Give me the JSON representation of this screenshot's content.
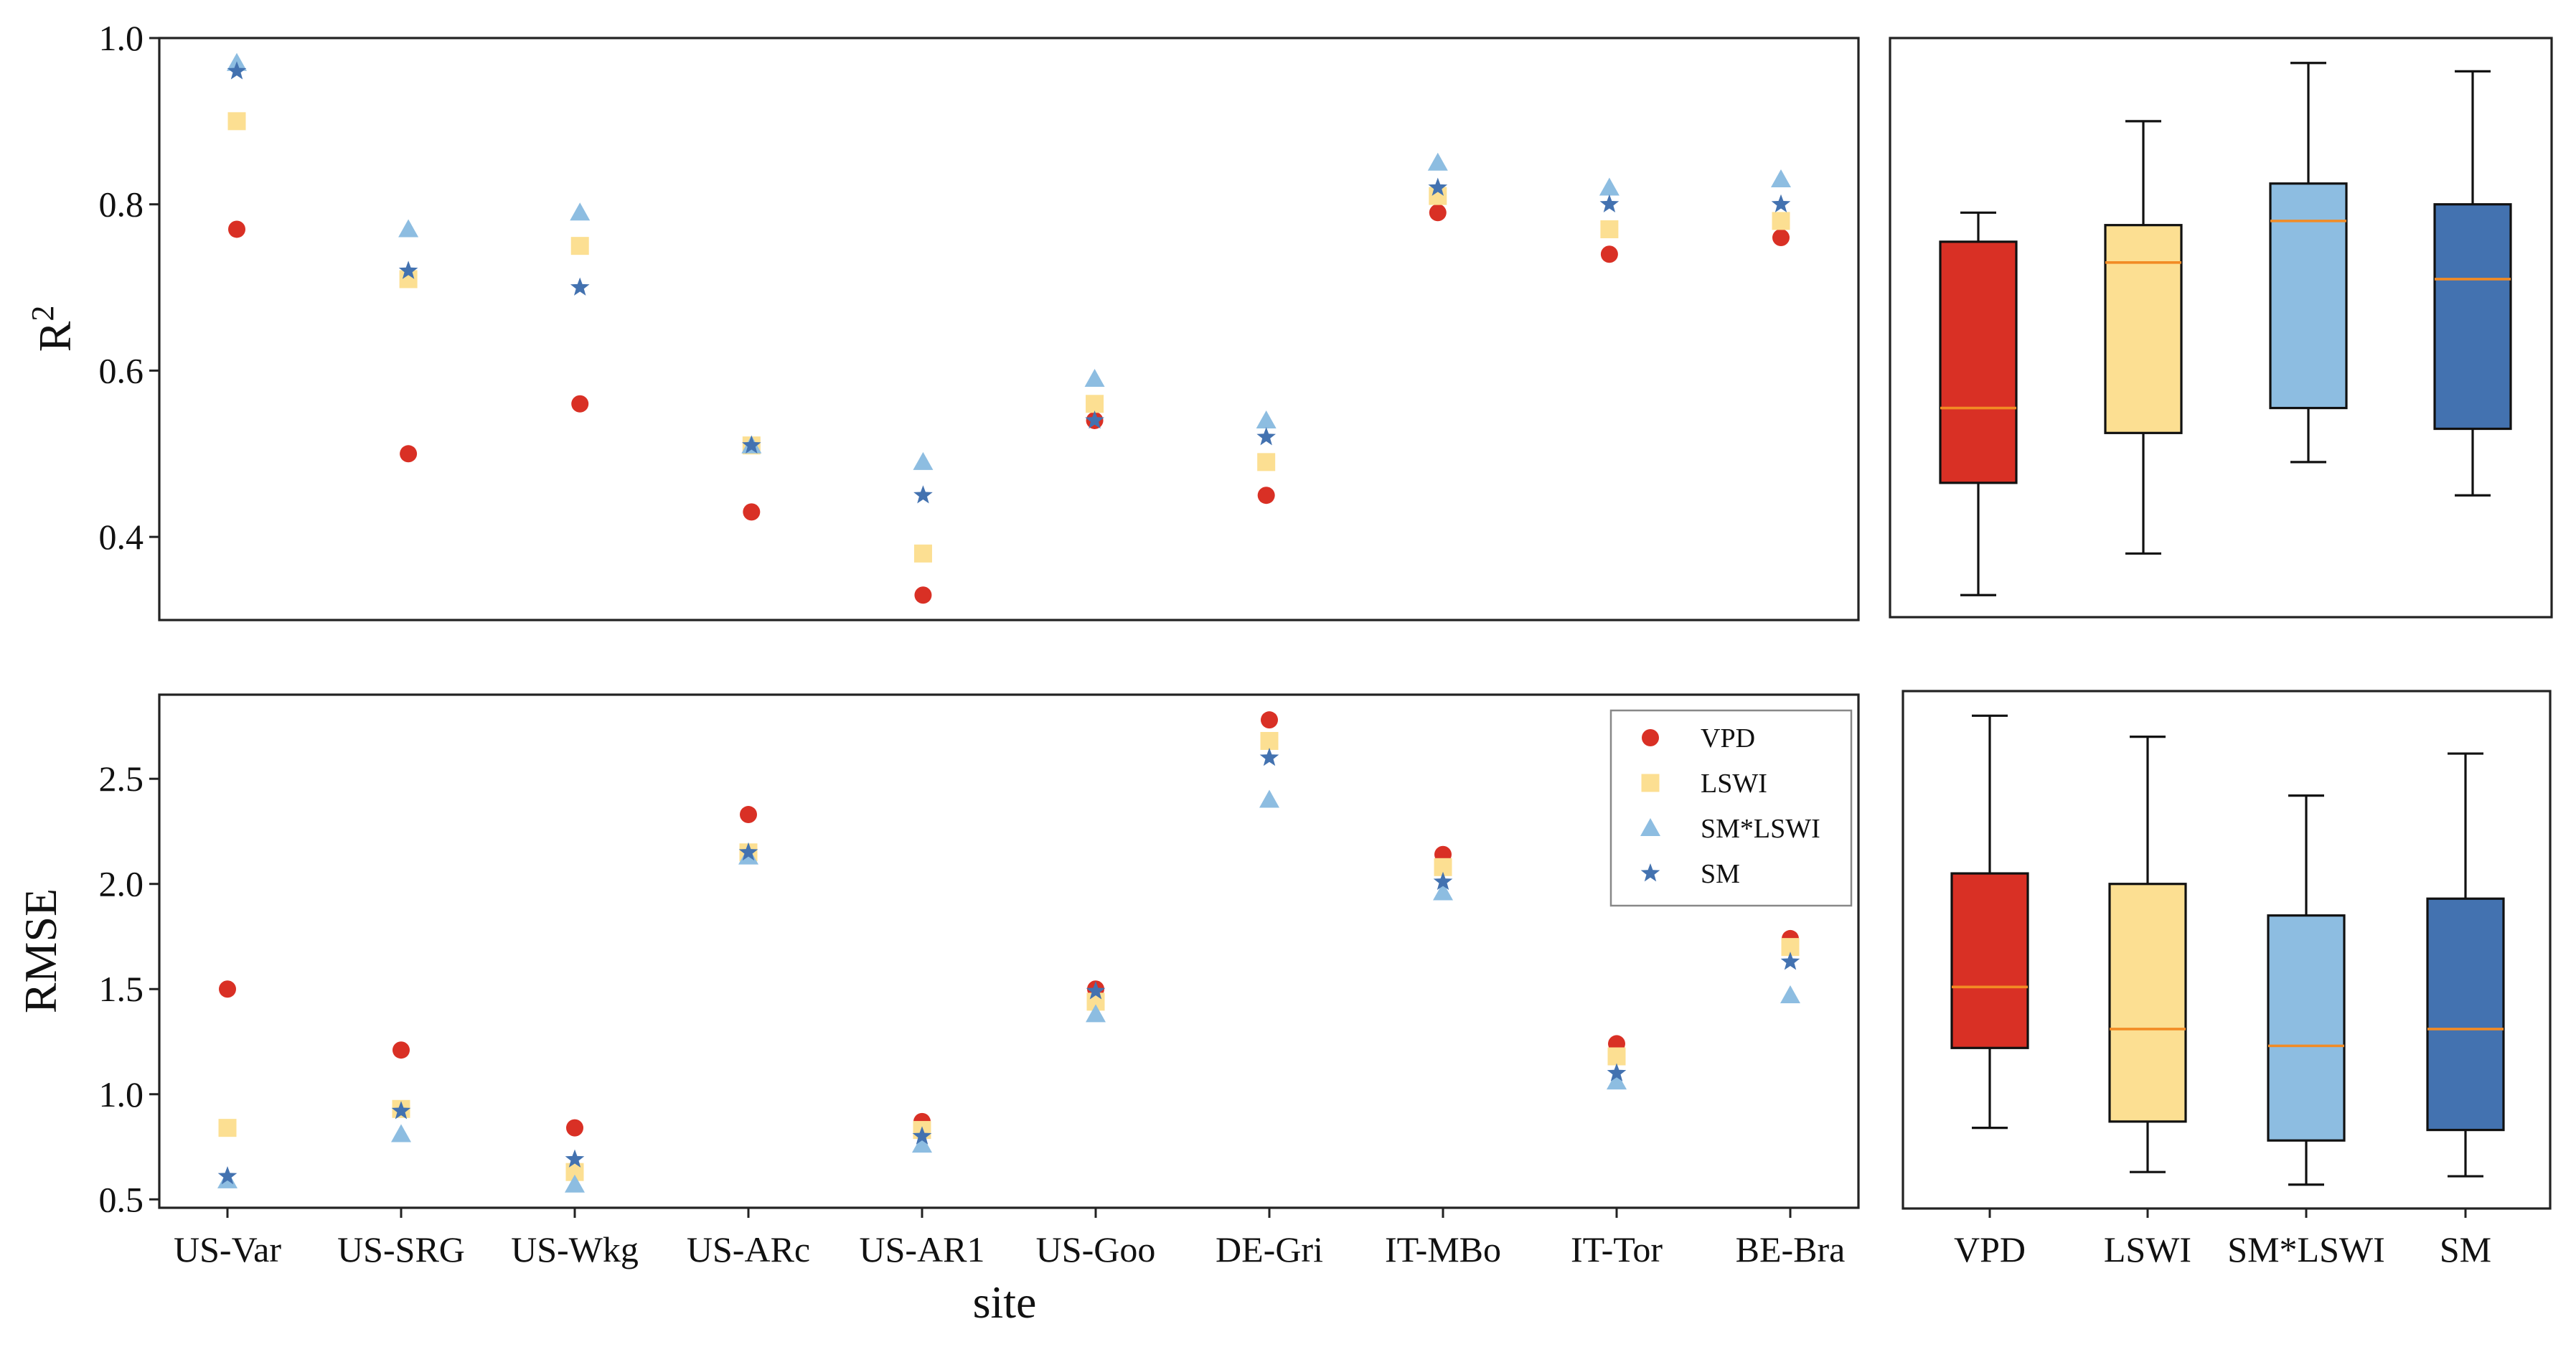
{
  "colors": {
    "VPD": "#d93025",
    "LSWI": "#fcdf92",
    "SM*LSWI": "#8dbde1",
    "SM": "#4372b0",
    "median": "#f28b24",
    "axis": "#222222"
  },
  "chart_data": [
    {
      "id": "r2_scatter",
      "type": "scatter",
      "ylabel": "R",
      "ylabel_superscript": "2",
      "xlabel": "",
      "ylim": [
        0.3,
        1.0
      ],
      "yticks": [
        0.4,
        0.6,
        0.8,
        1.0
      ],
      "ytick_labels": [
        "0.4",
        "0.6",
        "0.8",
        "1.0"
      ],
      "categories": [
        "US-Var",
        "US-SRG",
        "US-Wkg",
        "US-ARc",
        "US-AR1",
        "US-Goo",
        "DE-Gri",
        "IT-MBo",
        "IT-Tor",
        "BE-Bra"
      ],
      "show_xtick_labels": false,
      "series": [
        {
          "name": "VPD",
          "marker": "circle",
          "values": [
            0.77,
            0.5,
            0.56,
            0.43,
            0.33,
            0.54,
            0.45,
            0.79,
            0.74,
            0.76
          ]
        },
        {
          "name": "LSWI",
          "marker": "square",
          "values": [
            0.9,
            0.71,
            0.75,
            0.51,
            0.38,
            0.56,
            0.49,
            0.81,
            0.77,
            0.78
          ]
        },
        {
          "name": "SM*LSWI",
          "marker": "triangle",
          "values": [
            0.97,
            0.77,
            0.79,
            0.51,
            0.49,
            0.59,
            0.54,
            0.85,
            0.82,
            0.83
          ]
        },
        {
          "name": "SM",
          "marker": "star",
          "values": [
            0.96,
            0.72,
            0.7,
            0.51,
            0.45,
            0.54,
            0.52,
            0.82,
            0.8,
            0.8
          ]
        }
      ]
    },
    {
      "id": "r2_box",
      "type": "box",
      "ylim": [
        0.3,
        1.0
      ],
      "show_ytick_labels": false,
      "categories": [
        "VPD",
        "LSWI",
        "SM*LSWI",
        "SM"
      ],
      "boxes": [
        {
          "name": "VPD",
          "min": 0.33,
          "q1": 0.465,
          "median": 0.555,
          "q3": 0.755,
          "max": 0.79
        },
        {
          "name": "LSWI",
          "min": 0.38,
          "q1": 0.525,
          "median": 0.73,
          "q3": 0.775,
          "max": 0.9
        },
        {
          "name": "SM*LSWI",
          "min": 0.49,
          "q1": 0.555,
          "median": 0.78,
          "q3": 0.825,
          "max": 0.97
        },
        {
          "name": "SM",
          "min": 0.45,
          "q1": 0.53,
          "median": 0.71,
          "q3": 0.8,
          "max": 0.96
        }
      ]
    },
    {
      "id": "rmse_scatter",
      "type": "scatter",
      "ylabel": "RMSE",
      "xlabel": "site",
      "ylim": [
        0.46,
        2.9
      ],
      "yticks": [
        0.5,
        1.0,
        1.5,
        2.0,
        2.5
      ],
      "ytick_labels": [
        "0.5",
        "1.0",
        "1.5",
        "2.0",
        "2.5"
      ],
      "categories": [
        "US-Var",
        "US-SRG",
        "US-Wkg",
        "US-ARc",
        "US-AR1",
        "US-Goo",
        "DE-Gri",
        "IT-MBo",
        "IT-Tor",
        "BE-Bra"
      ],
      "show_xtick_labels": true,
      "legend": {
        "position": "top-right",
        "entries": [
          "VPD",
          "LSWI",
          "SM*LSWI",
          "SM"
        ]
      },
      "series": [
        {
          "name": "VPD",
          "marker": "circle",
          "values": [
            1.5,
            1.21,
            0.84,
            2.33,
            0.87,
            1.5,
            2.78,
            2.14,
            1.24,
            1.74
          ]
        },
        {
          "name": "LSWI",
          "marker": "square",
          "values": [
            0.84,
            0.93,
            0.63,
            2.15,
            0.83,
            1.44,
            2.68,
            2.08,
            1.18,
            1.7
          ]
        },
        {
          "name": "SM*LSWI",
          "marker": "triangle",
          "values": [
            0.59,
            0.81,
            0.57,
            2.13,
            0.76,
            1.38,
            2.4,
            1.96,
            1.06,
            1.47
          ]
        },
        {
          "name": "SM",
          "marker": "star",
          "values": [
            0.61,
            0.92,
            0.69,
            2.15,
            0.8,
            1.49,
            2.6,
            2.01,
            1.1,
            1.63
          ]
        }
      ]
    },
    {
      "id": "rmse_box",
      "type": "box",
      "ylim": [
        0.46,
        2.9
      ],
      "show_ytick_labels": false,
      "categories": [
        "VPD",
        "LSWI",
        "SM*LSWI",
        "SM"
      ],
      "boxes": [
        {
          "name": "VPD",
          "min": 0.84,
          "q1": 1.22,
          "median": 1.51,
          "q3": 2.05,
          "max": 2.8
        },
        {
          "name": "LSWI",
          "min": 0.63,
          "q1": 0.87,
          "median": 1.31,
          "q3": 2.0,
          "max": 2.7
        },
        {
          "name": "SM*LSWI",
          "min": 0.57,
          "q1": 0.78,
          "median": 1.23,
          "q3": 1.85,
          "max": 2.42
        },
        {
          "name": "SM",
          "min": 0.61,
          "q1": 0.83,
          "median": 1.31,
          "q3": 1.93,
          "max": 2.62
        }
      ]
    }
  ]
}
